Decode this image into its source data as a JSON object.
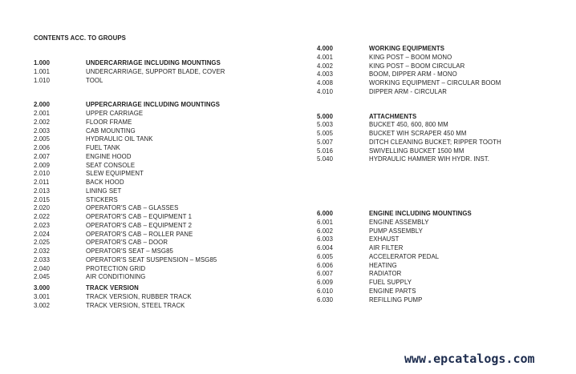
{
  "document": {
    "title": "CONTENTS ACC. TO GROUPS",
    "watermark": "www.epcatalogs.com"
  },
  "colors": {
    "text": "#1f1f1f",
    "watermark": "#1d2c4e"
  },
  "columns": {
    "left": [
      {
        "code": "1.000",
        "title": "UNDERCARRIAGE INCLUDING MOUNTINGS",
        "items": [
          {
            "code": "1.001",
            "label": "UNDERCARRIAGE, SUPPORT BLADE, COVER"
          },
          {
            "code": "1.010",
            "label": "TOOL"
          }
        ]
      },
      {
        "code": "2.000",
        "title": "UPPERCARRIAGE INCLUDING MOUNTINGS",
        "items": [
          {
            "code": "2.001",
            "label": "UPPER CARRIAGE"
          },
          {
            "code": "2.002",
            "label": "FLOOR FRAME"
          },
          {
            "code": "2.003",
            "label": "CAB MOUNTING"
          },
          {
            "code": "2.005",
            "label": "HYDRAULIC OIL TANK"
          },
          {
            "code": "2.006",
            "label": "FUEL TANK"
          },
          {
            "code": "2.007",
            "label": "ENGINE HOOD"
          },
          {
            "code": "2.009",
            "label": "SEAT CONSOLE"
          },
          {
            "code": "2.010",
            "label": "SLEW EQUIPMENT"
          },
          {
            "code": "2.011",
            "label": "BACK HOOD"
          },
          {
            "code": "2.013",
            "label": "LINING SET"
          },
          {
            "code": "2.015",
            "label": "STICKERS"
          },
          {
            "code": "2.020",
            "label": "OPERATOR'S CAB – GLASSES"
          },
          {
            "code": "2.022",
            "label": "OPERATOR'S CAB – EQUIPMENT 1"
          },
          {
            "code": "2.023",
            "label": "OPERATOR'S CAB – EQUIPMENT 2"
          },
          {
            "code": "2.024",
            "label": "OPERATOR'S CAB – ROLLER PANE"
          },
          {
            "code": "2.025",
            "label": "OPERATOR'S CAB – DOOR"
          },
          {
            "code": "2.032",
            "label": "OPERATOR'S SEAT – MSG85"
          },
          {
            "code": "2.033",
            "label": "OPERATOR'S SEAT SUSPENSION – MSG85"
          },
          {
            "code": "2.040",
            "label": "PROTECTION GRID"
          },
          {
            "code": "2.045",
            "label": "AIR CONDITIONING"
          }
        ]
      },
      {
        "code": "3.000",
        "title": "TRACK VERSION",
        "items": [
          {
            "code": "3.001",
            "label": "TRACK VERSION, RUBBER TRACK"
          },
          {
            "code": "3.002",
            "label": "TRACK VERSION, STEEL TRACK"
          }
        ]
      }
    ],
    "right": [
      {
        "code": "4.000",
        "title": "WORKING EQUIPMENTS",
        "items": [
          {
            "code": "4.001",
            "label": "KING POST – BOOM MONO"
          },
          {
            "code": "4.002",
            "label": "KING POST – BOOM CIRCULAR"
          },
          {
            "code": "4.003",
            "label": "BOOM, DIPPER ARM - MONO"
          },
          {
            "code": "4.008",
            "label": "WORKING EQUIPMENT – CIRCULAR BOOM"
          },
          {
            "code": "4.010",
            "label": "DIPPER ARM - CIRCULAR"
          }
        ]
      },
      {
        "code": "5.000",
        "title": "ATTACHMENTS",
        "items": [
          {
            "code": "5.003",
            "label": "BUCKET 450, 600, 800 MM"
          },
          {
            "code": "5.005",
            "label": "BUCKET WIH SCRAPER 450 MM"
          },
          {
            "code": "5.007",
            "label": "DITCH CLEANING BUCKET; RIPPER TOOTH"
          },
          {
            "code": "5.016",
            "label": "SWIVELLING BUCKET 1500 MM"
          },
          {
            "code": "5.040",
            "label": "HYDRAULIC HAMMER WIH HYDR. INST."
          }
        ]
      },
      {
        "code": "6.000",
        "title": "ENGINE INCLUDING MOUNTINGS",
        "items": [
          {
            "code": "6.001",
            "label": "ENGINE ASSEMBLY"
          },
          {
            "code": "6.002",
            "label": "PUMP ASSEMBLY"
          },
          {
            "code": "6.003",
            "label": "EXHAUST"
          },
          {
            "code": "6.004",
            "label": "AIR FILTER"
          },
          {
            "code": "6.005",
            "label": "ACCELERATOR PEDAL"
          },
          {
            "code": "6.006",
            "label": "HEATING"
          },
          {
            "code": "6.007",
            "label": "RADIATOR"
          },
          {
            "code": "6.009",
            "label": "FUEL SUPPLY"
          },
          {
            "code": "6.010",
            "label": "ENGINE PARTS"
          },
          {
            "code": "6.030",
            "label": "REFILLING PUMP"
          }
        ]
      }
    ]
  }
}
